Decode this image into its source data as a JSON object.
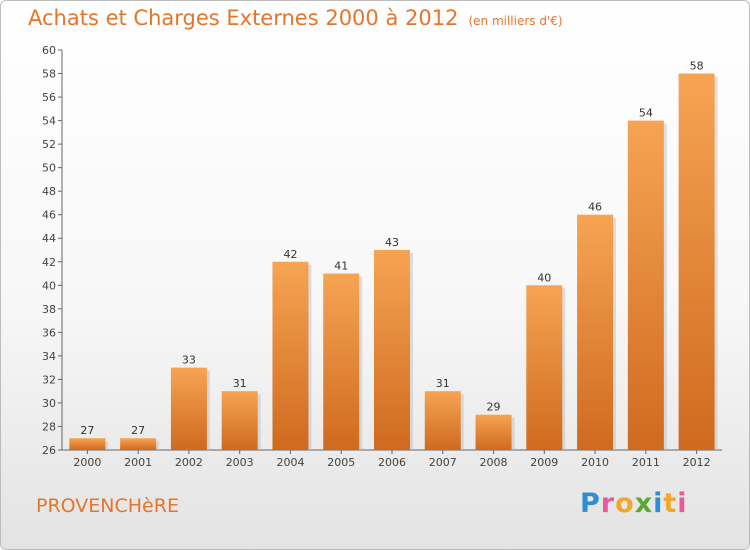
{
  "header": {
    "title": "Achats et Charges Externes 2000 à 2012",
    "subtitle": "(en milliers d'€)"
  },
  "footer": {
    "city": "PROVENCHèRE",
    "logo_letters": [
      "P",
      "r",
      "o",
      "x",
      "i",
      "t",
      "i"
    ],
    "logo_colors": [
      "#2a8fd6",
      "#e85b9a",
      "#f2a72b",
      "#5aa832",
      "#2a8fd6",
      "#f2a72b",
      "#e85b9a"
    ]
  },
  "chart_data": {
    "type": "bar",
    "title": "Achats et Charges Externes 2000 à 2012",
    "subtitle": "(en milliers d'€)",
    "categories": [
      "2000",
      "2001",
      "2002",
      "2003",
      "2004",
      "2005",
      "2006",
      "2007",
      "2008",
      "2009",
      "2010",
      "2011",
      "2012"
    ],
    "values": [
      27,
      27,
      33,
      31,
      42,
      41,
      43,
      31,
      29,
      40,
      46,
      54,
      58
    ],
    "ylim": [
      26,
      60
    ],
    "yticks": [
      26,
      28,
      30,
      32,
      34,
      36,
      38,
      40,
      42,
      44,
      46,
      48,
      50,
      52,
      54,
      56,
      58,
      60
    ],
    "grid": false,
    "bar_color": "#f0953f",
    "bar_color_dark": "#cf6a1f"
  }
}
